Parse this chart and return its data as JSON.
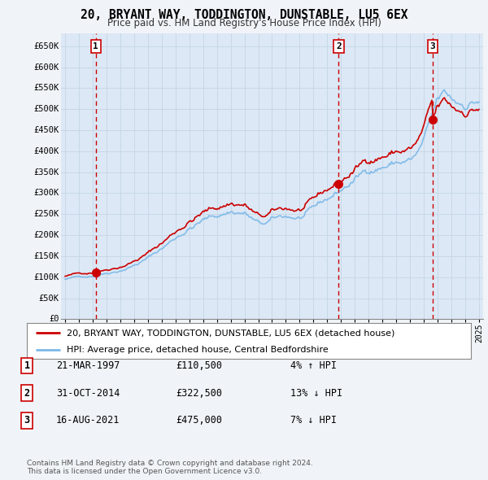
{
  "title": "20, BRYANT WAY, TODDINGTON, DUNSTABLE, LU5 6EX",
  "subtitle": "Price paid vs. HM Land Registry's House Price Index (HPI)",
  "background_color": "#f0f4f8",
  "plot_bg_color": "#dce8f5",
  "grid_color": "#c8d8e8",
  "ylim": [
    0,
    680000
  ],
  "yticks": [
    0,
    50000,
    100000,
    150000,
    200000,
    250000,
    300000,
    350000,
    400000,
    450000,
    500000,
    550000,
    600000,
    650000
  ],
  "ytick_labels": [
    "£0",
    "£50K",
    "£100K",
    "£150K",
    "£200K",
    "£250K",
    "£300K",
    "£350K",
    "£400K",
    "£450K",
    "£500K",
    "£550K",
    "£600K",
    "£650K"
  ],
  "hpi_color": "#7ab8e8",
  "price_color": "#cc0000",
  "vline_color": "#cc0000",
  "transactions": [
    {
      "date": 1997.22,
      "price": 110500,
      "label": "1"
    },
    {
      "date": 2014.83,
      "price": 322500,
      "label": "2"
    },
    {
      "date": 2021.63,
      "price": 475000,
      "label": "3"
    }
  ],
  "legend_line1": "20, BRYANT WAY, TODDINGTON, DUNSTABLE, LU5 6EX (detached house)",
  "legend_line2": "HPI: Average price, detached house, Central Bedfordshire",
  "table_rows": [
    {
      "num": "1",
      "date": "21-MAR-1997",
      "price": "£110,500",
      "hpi": "4% ↑ HPI"
    },
    {
      "num": "2",
      "date": "31-OCT-2014",
      "price": "£322,500",
      "hpi": "13% ↓ HPI"
    },
    {
      "num": "3",
      "date": "16-AUG-2021",
      "price": "£475,000",
      "hpi": "7% ↓ HPI"
    }
  ],
  "footnote": "Contains HM Land Registry data © Crown copyright and database right 2024.\nThis data is licensed under the Open Government Licence v3.0.",
  "xlim_start": 1994.7,
  "xlim_end": 2025.3
}
